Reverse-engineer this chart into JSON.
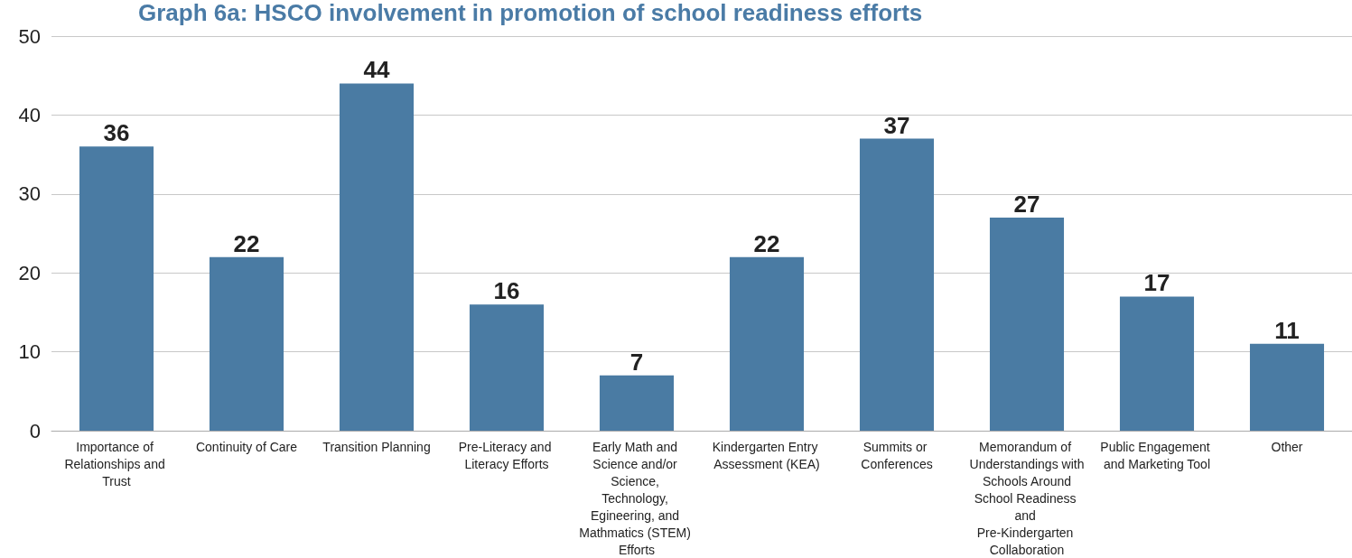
{
  "chart_data": {
    "type": "bar",
    "title": "Graph 6a: HSCO involvement in promotion of school readiness efforts",
    "categories": [
      "Importance of Relationships and Trust",
      "Continuity of Care",
      "Transition Planning",
      "Pre-Literacy and Literacy Efforts",
      "Early Math and Science and/or Science, Technology, Egineering, and Mathmatics (STEM) Efforts",
      "Kindergarten Entry Assessment (KEA)",
      "Summits or Conferences",
      "Memorandum of Understandings with Schools Around School Readiness and Pre-Kindergarten Collaboration",
      "Public Engagement and Marketing Tool",
      "Other"
    ],
    "values": [
      36,
      22,
      44,
      16,
      7,
      22,
      37,
      27,
      17,
      11
    ],
    "color": "#4a7ba3",
    "ylim": [
      0,
      50
    ],
    "yticks": [
      0,
      10,
      20,
      30,
      40,
      50
    ],
    "grid": "y",
    "data_labels": true
  }
}
